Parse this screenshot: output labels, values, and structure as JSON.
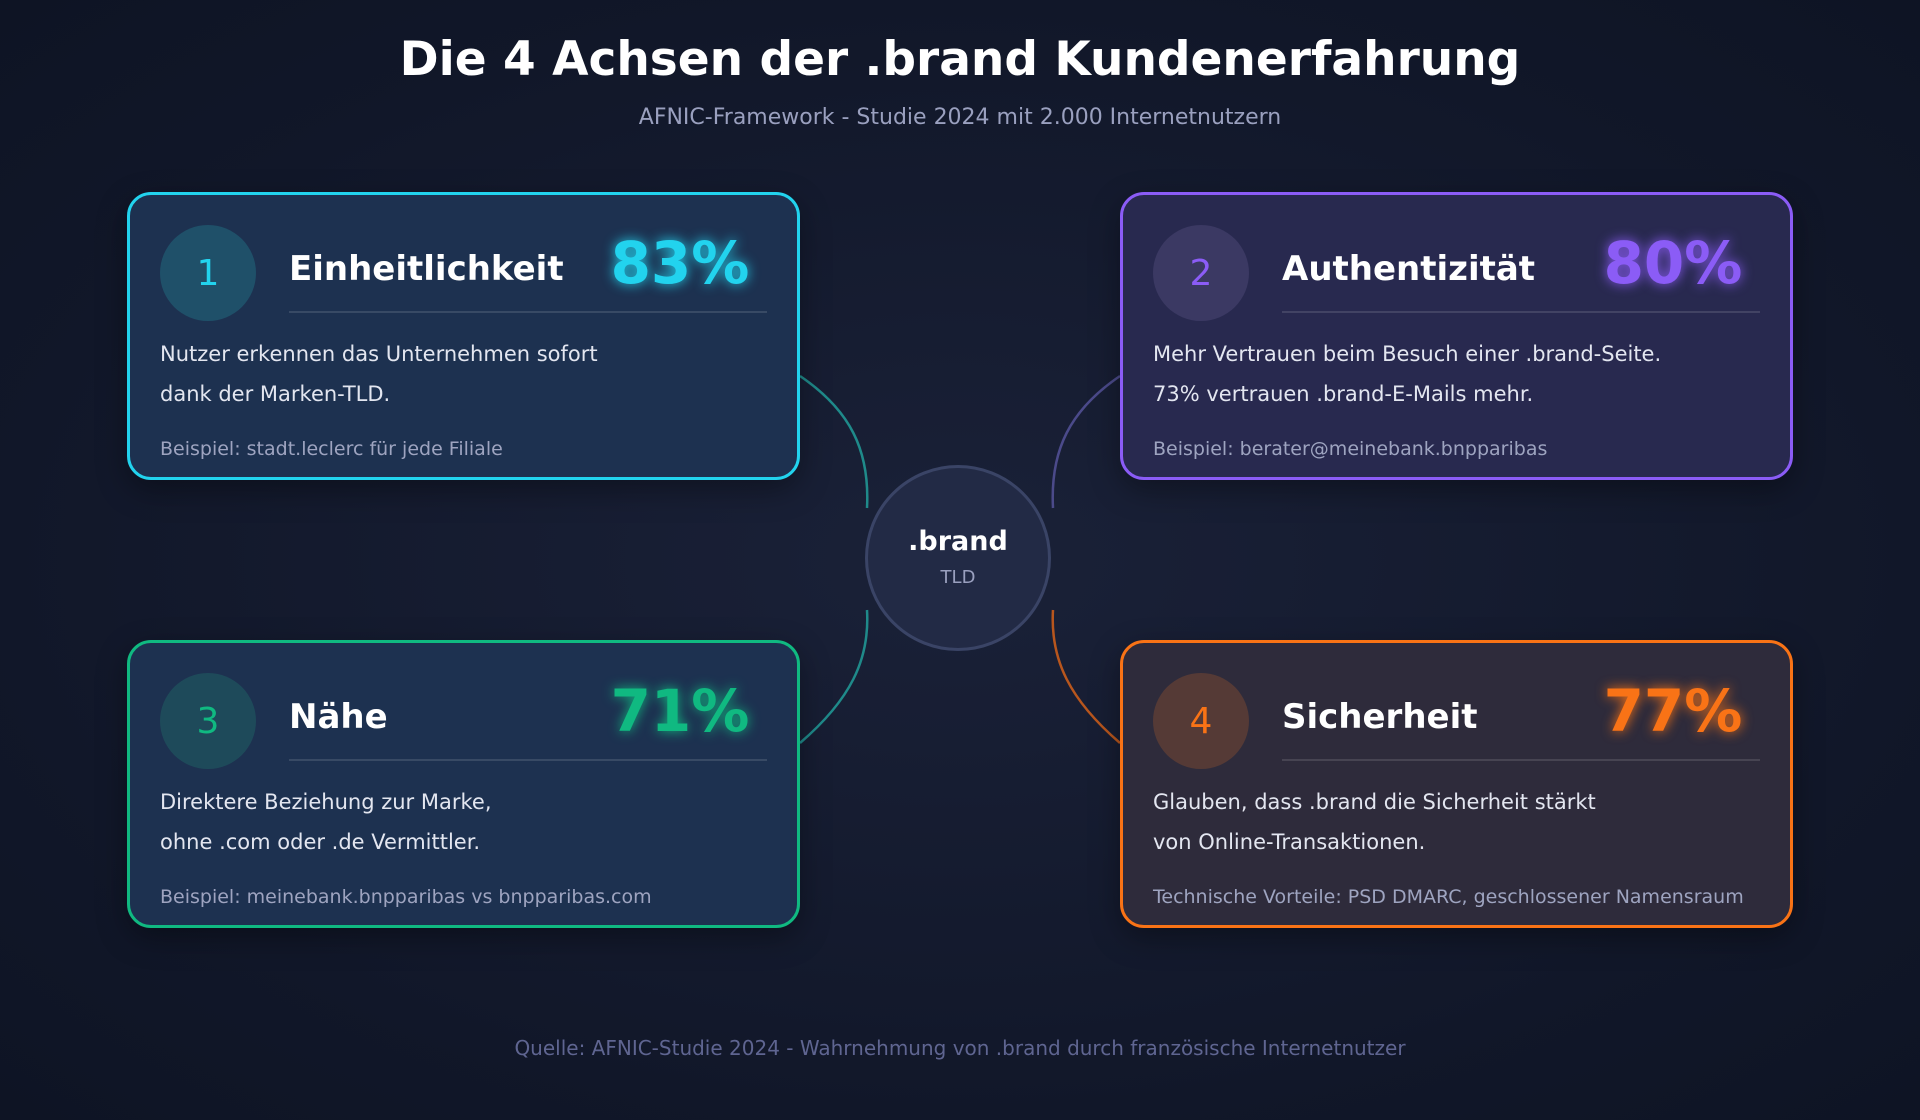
{
  "header": {
    "title": "Die 4 Achsen der .brand Kundenerfahrung",
    "subtitle": "AFNIC-Framework - Studie 2024 mit 2.000 Internetnutzern"
  },
  "center": {
    "label": ".brand",
    "sublabel": "TLD"
  },
  "cards": [
    {
      "number": "1",
      "title": "Einheitlichkeit",
      "percent": "83%",
      "lines": [
        "Nutzer erkennen das Unternehmen sofort",
        "dank der Marken-TLD."
      ],
      "example": "Beispiel: stadt.leclerc für jede Filiale"
    },
    {
      "number": "2",
      "title": "Authentizität",
      "percent": "80%",
      "lines": [
        "Mehr Vertrauen beim Besuch einer .brand-Seite.",
        "73% vertrauen .brand-E-Mails mehr."
      ],
      "example": "Beispiel: berater@meinebank.bnpparibas"
    },
    {
      "number": "3",
      "title": "Nähe",
      "percent": "71%",
      "lines": [
        "Direktere Beziehung zur Marke,",
        "ohne .com oder .de Vermittler."
      ],
      "example": "Beispiel: meinebank.bnpparibas vs bnpparibas.com"
    },
    {
      "number": "4",
      "title": "Sicherheit",
      "percent": "77%",
      "lines": [
        "Glauben, dass .brand die Sicherheit stärkt",
        "von Online-Transaktionen."
      ],
      "example": "Technische Vorteile: PSD DMARC, geschlossener Namensraum"
    }
  ],
  "footer": {
    "source": "Quelle: AFNIC-Studie 2024 - Wahrnehmung von .brand durch französische Internetnutzer"
  }
}
